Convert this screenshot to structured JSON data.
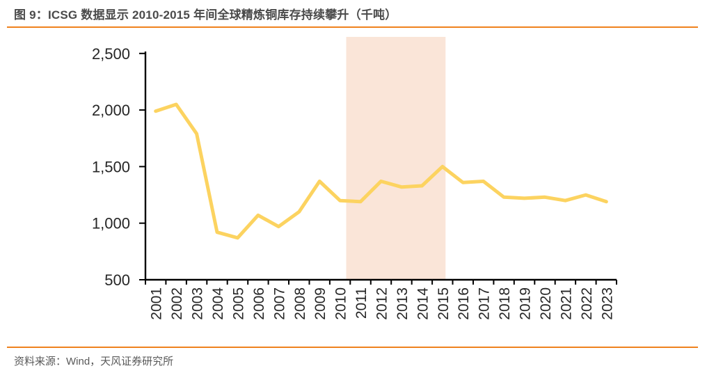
{
  "header": {
    "title": "图 9：ICSG 数据显示 2010-2015 年间全球精炼铜库存持续攀升（千吨）"
  },
  "footer": {
    "source": "资料来源：Wind，天风证券研究所"
  },
  "colors": {
    "accent_rule": "#ef821d",
    "series_line": "#fcd360",
    "highlight_band": "#fae5d8",
    "axis": "#000000",
    "title_text": "#4a4a4a",
    "source_text": "#595959",
    "tick_text": "#262626"
  },
  "chart_data": {
    "type": "line",
    "title": "图 9：ICSG 数据显示 2010-2015 年间全球精炼铜库存持续攀升（千吨）",
    "unit": "千吨",
    "categories": [
      "2001",
      "2002",
      "2003",
      "2004",
      "2005",
      "2006",
      "2007",
      "2008",
      "2009",
      "2010",
      "2011",
      "2012",
      "2013",
      "2014",
      "2015",
      "2016",
      "2017",
      "2018",
      "2019",
      "2020",
      "2021",
      "2022",
      "2023"
    ],
    "series": [
      {
        "name": "全球精炼铜库存",
        "values": [
          1990,
          2050,
          1790,
          920,
          870,
          1070,
          970,
          1100,
          1370,
          1200,
          1190,
          1370,
          1320,
          1330,
          1500,
          1360,
          1370,
          1230,
          1220,
          1230,
          1200,
          1250,
          1190
        ]
      }
    ],
    "ylim": [
      500,
      2500
    ],
    "yticks": [
      500,
      1000,
      1500,
      2000,
      2500
    ],
    "ytick_labels": [
      "500",
      "1,000",
      "1,500",
      "2,000",
      "2,500"
    ],
    "highlight_band": {
      "start_year": 2010.3,
      "end_year": 2015.15
    },
    "grid": false,
    "legend_position": "none",
    "xlabel": "",
    "ylabel": ""
  }
}
